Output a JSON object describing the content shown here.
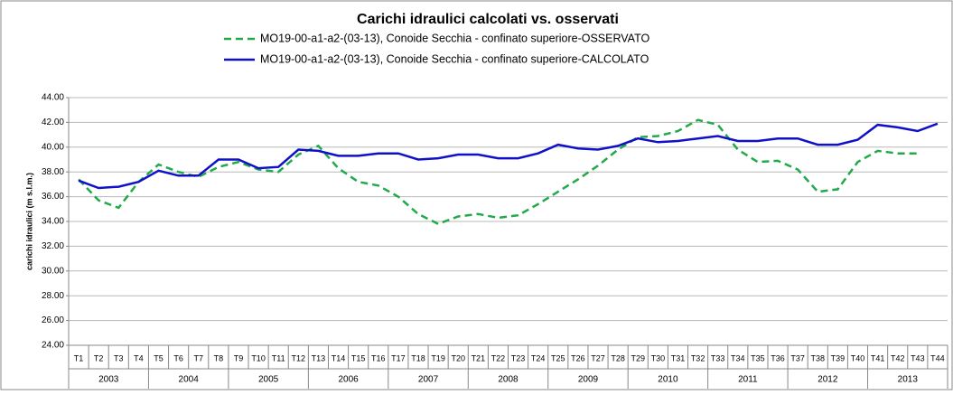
{
  "chart_data": {
    "type": "line",
    "title": "Carichi idraulici calcolati vs. osservati",
    "y_label": "carichi idraulici  (m s.l.m.)",
    "categories": [
      "T1",
      "T2",
      "T3",
      "T4",
      "T5",
      "T6",
      "T7",
      "T8",
      "T9",
      "T10",
      "T11",
      "T12",
      "T13",
      "T14",
      "T15",
      "T16",
      "T17",
      "T18",
      "T19",
      "T20",
      "T21",
      "T22",
      "T23",
      "T24",
      "T25",
      "T26",
      "T27",
      "T28",
      "T29",
      "T30",
      "T31",
      "T32",
      "T33",
      "T34",
      "T35",
      "T36",
      "T37",
      "T38",
      "T39",
      "T40",
      "T41",
      "T42",
      "T43",
      "T44"
    ],
    "year_groups": [
      "2003",
      "2004",
      "2005",
      "2006",
      "2007",
      "2008",
      "2009",
      "2010",
      "2011",
      "2012",
      "2013"
    ],
    "series": [
      {
        "name": "MO19-00-a1-a2-(03-13), Conoide Secchia - confinato superiore-OSSERVATO",
        "color": "#22aa4a",
        "dashed": true,
        "values": [
          37.4,
          35.7,
          35.1,
          37.2,
          38.6,
          38.0,
          37.6,
          38.4,
          38.8,
          38.2,
          38.0,
          39.4,
          40.1,
          38.3,
          37.2,
          36.9,
          36.0,
          34.6,
          33.8,
          34.4,
          34.6,
          34.3,
          34.5,
          35.4,
          36.4,
          37.4,
          38.5,
          39.8,
          40.8,
          40.9,
          41.3,
          42.2,
          41.8,
          39.8,
          38.8,
          38.9,
          38.2,
          36.4,
          36.6,
          38.8,
          39.7,
          39.5,
          39.5,
          null
        ]
      },
      {
        "name": "MO19-00-a1-a2-(03-13), Conoide Secchia - confinato superiore-CALCOLATO",
        "color": "#1010c8",
        "dashed": false,
        "values": [
          37.3,
          36.7,
          36.8,
          37.2,
          38.1,
          37.7,
          37.7,
          39.0,
          39.0,
          38.3,
          38.4,
          39.8,
          39.7,
          39.3,
          39.3,
          39.5,
          39.5,
          39.0,
          39.1,
          39.4,
          39.4,
          39.1,
          39.1,
          39.5,
          40.2,
          39.9,
          39.8,
          40.1,
          40.7,
          40.4,
          40.5,
          40.7,
          40.9,
          40.5,
          40.5,
          40.7,
          40.7,
          40.2,
          40.2,
          40.6,
          41.8,
          41.6,
          41.3,
          41.9
        ]
      }
    ],
    "ylim": [
      24,
      44
    ],
    "yticks": [
      {
        "value": 24,
        "label": "24.00"
      },
      {
        "value": 26,
        "label": "26.00"
      },
      {
        "value": 28,
        "label": "28.00"
      },
      {
        "value": 30,
        "label": "30.00"
      },
      {
        "value": 32,
        "label": "32.00"
      },
      {
        "value": 34,
        "label": "34.00"
      },
      {
        "value": 36,
        "label": "36.00"
      },
      {
        "value": 38,
        "label": "38.00"
      },
      {
        "value": 40,
        "label": "40.00"
      },
      {
        "value": 42,
        "label": "42.00"
      },
      {
        "value": 44,
        "label": "44.00"
      }
    ],
    "grid": true
  }
}
